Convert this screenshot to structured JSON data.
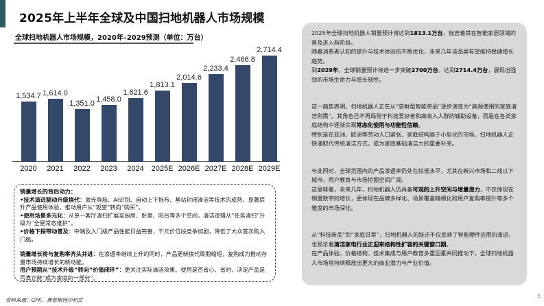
{
  "page": {
    "title": "2025年上半年全球及中国扫地机器人市场规模",
    "page_number": "5",
    "accent_color": "#2f5a61",
    "bar_color": "#34486a",
    "panel_color": "#d9d9d9"
  },
  "chart_data": {
    "type": "bar",
    "title": "全球扫地机器人市场规模，2020年–2029预测（单位：万台）",
    "categories": [
      "2020",
      "2021",
      "2022",
      "2023",
      "2024",
      "2025E",
      "2026E",
      "2027E",
      "2028E",
      "2029E"
    ],
    "values": [
      1534.7,
      1614.0,
      1351.0,
      1458.0,
      1621.6,
      1813.1,
      2014.6,
      2233.4,
      2466.8,
      2714.4
    ],
    "value_labels": [
      "1,534.7",
      "1,614.0",
      "1,351.0",
      "1,458.0",
      "1,621.6",
      "1,813.1",
      "2,014.6",
      "2,233.4",
      "2,466.8",
      "2,714.4"
    ],
    "xlabel": "",
    "ylabel": "万台",
    "ylim": [
      0,
      2800
    ],
    "grid": false,
    "legend": null
  },
  "drivers": {
    "heading": "销量增长的背后动力：",
    "items": [
      {
        "title": "•技术演进驱动升级换代",
        "text": "：激光导航、AI识别、自动上下拖布、基站封闭清洁等技术的成熟，显著提升产品使用体验，推动用户从“观望”转向“购买”。"
      },
      {
        "title": "•使用场景多元化",
        "text": "：从单一客厅清扫扩展至厨房、卧室、阳台等多个空间，清洁逻辑从“任务清扫”升级为“全屋常态维护”。"
      },
      {
        "title": "•价格下探带动普及",
        "text": "：中端及入门级产品性能日益完善，千元价位段竞争加剧，降低了大众首次购入门槛。"
      },
      {
        "title": "销量增长将与复购率齐头并进",
        "text": "：在渗透率继续上升的同时，产品更新换代周期缩短，复购成为推动存量市场持续增长的新动能。"
      },
      {
        "title": "用户预期从“技术升级”转向“价值闭环”",
        "text": "：更关注实际清洁效果、使用是否省心、省时，决定产品是否真正能“成为家庭的一部分”。"
      }
    ]
  },
  "source": "资料来源：GFK，弗若斯特沙利文",
  "summary": {
    "p1": {
      "a": "2025年全球扫地机器人销量预计将达到",
      "b": "1813.1万台",
      "c": "，标志着其在智能家居领域的普及进入新阶段。"
    },
    "p2": "随着消费者认知的提升与技术体验的不断优化，未来几年该品类有望维持稳健增长趋势。",
    "p3": {
      "a": "到",
      "b": "2029年",
      "c": "，全球销量预计将进一步突破",
      "d": "2700万台",
      "e": "，达到",
      "f": "2714.4万台",
      "g": "，展现出强劲的市场生命力与增长韧性。"
    },
    "p4": {
      "a": "这一趋势表明，扫地机器人正在从“尝鲜型智能单品”逐步演变为“高频使用的家庭清洁刚需”。其角色已不再局限于科技爱好者和高收入人群的辅助设备，而是在各类家庭结构中逐渐实现",
      "b": "常态化使用与功能性信赖",
      "c": "。"
    },
    "p5": "特别是在亚洲、欧洲等劳动人口紧张、家庭结构趋于小型化的市场，扫地机器人正快速取代传统清洁方式，成为家庭基础清洁力的重要补充。",
    "p6": "与此同时，全球范围内的产品渗透率仍处在较低水平，尤其在新兴市场和二线以下城市，用户教育与市场挖掘空间广阔。",
    "p7": {
      "a": "这意味着，未来几年，扫地机器人仍具备",
      "b": "可观的上升空间与增量潜力",
      "c": "，不仅体现在销量数字的增长，更体现在品牌多样化、场景覆盖精细化和用户复购率提升等多个维度的市场深化。"
    },
    "p8": {
      "a": "从“科技新品”到“家庭日常”，扫地机器人的跃迁不仅反映了智能硬件应用的演进，也预示着",
      "b": "清洁家电行业正迎来结构性扩容的关键窗口期",
      "c": "。"
    },
    "p9": "在产品体验、价格结构、技术集成与用户教育多重因素共同推动下，全球扫地机器人市场将持续释放出更大的商业潜力与产业价值。"
  }
}
